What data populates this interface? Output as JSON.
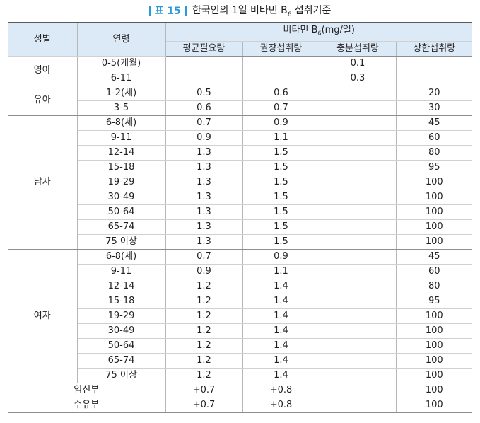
{
  "title": {
    "tag": "표 15",
    "main": "한국인의 1일 비타민 B",
    "sub": "6",
    "tail": " 섭취기준"
  },
  "header": {
    "gender": "성별",
    "age": "연령",
    "group": "비타민 B",
    "group_sub": "6",
    "group_unit": "(mg/일)",
    "cols": [
      "평균필요량",
      "권장섭취량",
      "충분섭취량",
      "상한섭취량"
    ]
  },
  "groups": [
    {
      "label": "영아",
      "rows": [
        {
          "age": "0-5(개월)",
          "v": [
            "",
            "",
            "0.1",
            ""
          ]
        },
        {
          "age": "6-11",
          "v": [
            "",
            "",
            "0.3",
            ""
          ]
        }
      ]
    },
    {
      "label": "유아",
      "rows": [
        {
          "age": "1-2(세)",
          "v": [
            "0.5",
            "0.6",
            "",
            "20"
          ]
        },
        {
          "age": "3-5",
          "v": [
            "0.6",
            "0.7",
            "",
            "30"
          ]
        }
      ]
    },
    {
      "label": "남자",
      "rows": [
        {
          "age": "6-8(세)",
          "v": [
            "0.7",
            "0.9",
            "",
            "45"
          ]
        },
        {
          "age": "9-11",
          "v": [
            "0.9",
            "1.1",
            "",
            "60"
          ]
        },
        {
          "age": "12-14",
          "v": [
            "1.3",
            "1.5",
            "",
            "80"
          ]
        },
        {
          "age": "15-18",
          "v": [
            "1.3",
            "1.5",
            "",
            "95"
          ]
        },
        {
          "age": "19-29",
          "v": [
            "1.3",
            "1.5",
            "",
            "100"
          ]
        },
        {
          "age": "30-49",
          "v": [
            "1.3",
            "1.5",
            "",
            "100"
          ]
        },
        {
          "age": "50-64",
          "v": [
            "1.3",
            "1.5",
            "",
            "100"
          ]
        },
        {
          "age": "65-74",
          "v": [
            "1.3",
            "1.5",
            "",
            "100"
          ]
        },
        {
          "age": "75 이상",
          "v": [
            "1.3",
            "1.5",
            "",
            "100"
          ]
        }
      ]
    },
    {
      "label": "여자",
      "rows": [
        {
          "age": "6-8(세)",
          "v": [
            "0.7",
            "0.9",
            "",
            "45"
          ]
        },
        {
          "age": "9-11",
          "v": [
            "0.9",
            "1.1",
            "",
            "60"
          ]
        },
        {
          "age": "12-14",
          "v": [
            "1.2",
            "1.4",
            "",
            "80"
          ]
        },
        {
          "age": "15-18",
          "v": [
            "1.2",
            "1.4",
            "",
            "95"
          ]
        },
        {
          "age": "19-29",
          "v": [
            "1.2",
            "1.4",
            "",
            "100"
          ]
        },
        {
          "age": "30-49",
          "v": [
            "1.2",
            "1.4",
            "",
            "100"
          ]
        },
        {
          "age": "50-64",
          "v": [
            "1.2",
            "1.4",
            "",
            "100"
          ]
        },
        {
          "age": "65-74",
          "v": [
            "1.2",
            "1.4",
            "",
            "100"
          ]
        },
        {
          "age": "75 이상",
          "v": [
            "1.2",
            "1.4",
            "",
            "100"
          ]
        }
      ]
    }
  ],
  "special": [
    {
      "label": "임신부",
      "v": [
        "+0.7",
        "+0.8",
        "",
        "100"
      ]
    },
    {
      "label": "수유부",
      "v": [
        "+0.7",
        "+0.8",
        "",
        "100"
      ]
    }
  ],
  "colors": {
    "accent": "#2a9bd6",
    "header_bg": "#dceaf7"
  }
}
